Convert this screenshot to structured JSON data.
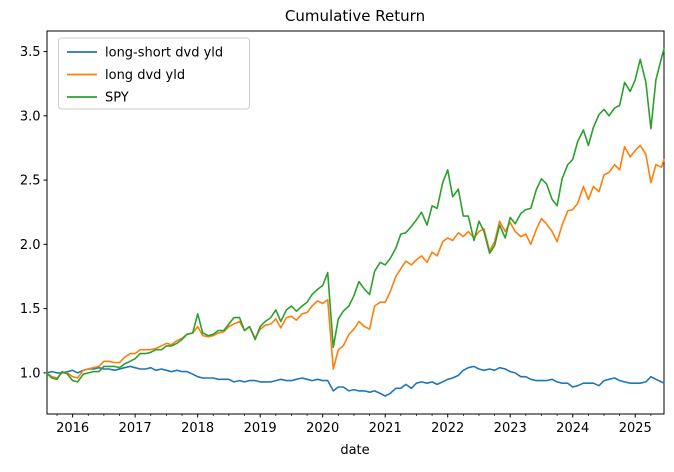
{
  "chart_data": {
    "type": "line",
    "title": "Cumulative Return",
    "xlabel": "date",
    "ylabel": "",
    "xlim": [
      2015.59,
      2025.46
    ],
    "ylim": [
      0.68,
      3.66
    ],
    "xticks": [
      2016,
      2017,
      2018,
      2019,
      2020,
      2021,
      2022,
      2023,
      2024,
      2025
    ],
    "yticks": [
      1.0,
      1.5,
      2.0,
      2.5,
      3.0,
      3.5
    ],
    "grid": false,
    "legend_position": "upper-left",
    "x_units": "decimal-year (monthly samples, Jul 2015 - Jun 2025)",
    "x": [
      2015.58,
      2015.67,
      2015.75,
      2015.83,
      2015.92,
      2016.0,
      2016.08,
      2016.17,
      2016.25,
      2016.33,
      2016.42,
      2016.5,
      2016.58,
      2016.67,
      2016.75,
      2016.83,
      2016.92,
      2017.0,
      2017.08,
      2017.17,
      2017.25,
      2017.33,
      2017.42,
      2017.5,
      2017.58,
      2017.67,
      2017.75,
      2017.83,
      2017.92,
      2018.0,
      2018.08,
      2018.17,
      2018.25,
      2018.33,
      2018.42,
      2018.5,
      2018.58,
      2018.67,
      2018.75,
      2018.83,
      2018.92,
      2019.0,
      2019.08,
      2019.17,
      2019.25,
      2019.33,
      2019.42,
      2019.5,
      2019.58,
      2019.67,
      2019.75,
      2019.83,
      2019.92,
      2020.0,
      2020.08,
      2020.17,
      2020.25,
      2020.33,
      2020.42,
      2020.5,
      2020.58,
      2020.67,
      2020.75,
      2020.83,
      2020.92,
      2021.0,
      2021.08,
      2021.17,
      2021.25,
      2021.33,
      2021.42,
      2021.5,
      2021.58,
      2021.67,
      2021.75,
      2021.83,
      2021.92,
      2022.0,
      2022.08,
      2022.17,
      2022.25,
      2022.33,
      2022.42,
      2022.5,
      2022.58,
      2022.67,
      2022.75,
      2022.83,
      2022.92,
      2023.0,
      2023.08,
      2023.17,
      2023.25,
      2023.33,
      2023.42,
      2023.5,
      2023.58,
      2023.67,
      2023.75,
      2023.83,
      2023.92,
      2024.0,
      2024.08,
      2024.17,
      2024.25,
      2024.33,
      2024.42,
      2024.5,
      2024.58,
      2024.67,
      2024.75,
      2024.83,
      2024.92,
      2025.0,
      2025.08,
      2025.17,
      2025.25,
      2025.33,
      2025.42,
      2025.46
    ],
    "series": [
      {
        "name": "long-short dvd yld",
        "color": "#1f77b4",
        "values": [
          1.0,
          1.01,
          1.0,
          1.0,
          1.01,
          1.02,
          1.0,
          1.02,
          1.03,
          1.03,
          1.04,
          1.03,
          1.03,
          1.02,
          1.03,
          1.04,
          1.05,
          1.04,
          1.03,
          1.03,
          1.04,
          1.02,
          1.03,
          1.02,
          1.01,
          1.02,
          1.01,
          1.01,
          0.99,
          0.97,
          0.96,
          0.96,
          0.96,
          0.95,
          0.95,
          0.95,
          0.93,
          0.94,
          0.93,
          0.94,
          0.94,
          0.93,
          0.93,
          0.93,
          0.94,
          0.95,
          0.94,
          0.94,
          0.95,
          0.96,
          0.95,
          0.94,
          0.95,
          0.94,
          0.94,
          0.86,
          0.89,
          0.89,
          0.86,
          0.87,
          0.86,
          0.86,
          0.85,
          0.86,
          0.84,
          0.82,
          0.84,
          0.88,
          0.88,
          0.91,
          0.88,
          0.92,
          0.93,
          0.92,
          0.93,
          0.91,
          0.93,
          0.95,
          0.96,
          0.98,
          1.02,
          1.04,
          1.05,
          1.03,
          1.02,
          1.03,
          1.02,
          1.04,
          1.03,
          1.01,
          1.0,
          0.97,
          0.97,
          0.95,
          0.94,
          0.94,
          0.94,
          0.95,
          0.93,
          0.92,
          0.92,
          0.89,
          0.9,
          0.92,
          0.92,
          0.92,
          0.9,
          0.94,
          0.95,
          0.96,
          0.94,
          0.93,
          0.92,
          0.92,
          0.92,
          0.93,
          0.97,
          0.95,
          0.93,
          0.92
        ]
      },
      {
        "name": "long dvd yld",
        "color": "#ff7f0e",
        "values": [
          1.0,
          0.97,
          0.96,
          1.0,
          1.0,
          0.97,
          0.96,
          1.02,
          1.03,
          1.04,
          1.05,
          1.09,
          1.09,
          1.08,
          1.08,
          1.12,
          1.15,
          1.15,
          1.18,
          1.18,
          1.18,
          1.19,
          1.21,
          1.23,
          1.22,
          1.25,
          1.27,
          1.3,
          1.31,
          1.36,
          1.29,
          1.28,
          1.29,
          1.31,
          1.32,
          1.36,
          1.38,
          1.4,
          1.33,
          1.36,
          1.27,
          1.34,
          1.37,
          1.38,
          1.42,
          1.35,
          1.43,
          1.44,
          1.41,
          1.46,
          1.47,
          1.52,
          1.56,
          1.54,
          1.57,
          1.03,
          1.18,
          1.21,
          1.3,
          1.34,
          1.4,
          1.36,
          1.34,
          1.52,
          1.55,
          1.55,
          1.63,
          1.75,
          1.81,
          1.87,
          1.84,
          1.88,
          1.91,
          1.86,
          1.94,
          1.91,
          2.02,
          2.05,
          2.03,
          2.09,
          2.06,
          2.1,
          2.05,
          2.1,
          2.12,
          1.95,
          2.02,
          2.18,
          2.1,
          2.17,
          2.1,
          2.06,
          2.08,
          2.0,
          2.12,
          2.2,
          2.16,
          2.1,
          2.02,
          2.15,
          2.26,
          2.27,
          2.32,
          2.45,
          2.35,
          2.45,
          2.41,
          2.54,
          2.56,
          2.62,
          2.58,
          2.76,
          2.68,
          2.73,
          2.77,
          2.7,
          2.48,
          2.62,
          2.6,
          2.66
        ]
      },
      {
        "name": "SPY",
        "color": "#2ca02c",
        "values": [
          1.0,
          0.96,
          0.95,
          1.01,
          0.99,
          0.94,
          0.93,
          0.99,
          1.0,
          1.01,
          1.01,
          1.05,
          1.05,
          1.05,
          1.04,
          1.07,
          1.09,
          1.11,
          1.15,
          1.15,
          1.16,
          1.18,
          1.18,
          1.21,
          1.21,
          1.23,
          1.26,
          1.3,
          1.31,
          1.46,
          1.31,
          1.29,
          1.3,
          1.33,
          1.33,
          1.38,
          1.43,
          1.43,
          1.33,
          1.36,
          1.26,
          1.36,
          1.4,
          1.43,
          1.49,
          1.4,
          1.49,
          1.52,
          1.48,
          1.52,
          1.55,
          1.61,
          1.65,
          1.68,
          1.78,
          1.2,
          1.42,
          1.48,
          1.52,
          1.6,
          1.71,
          1.65,
          1.61,
          1.79,
          1.86,
          1.84,
          1.89,
          1.97,
          2.08,
          2.09,
          2.14,
          2.19,
          2.25,
          2.15,
          2.3,
          2.28,
          2.48,
          2.58,
          2.37,
          2.43,
          2.22,
          2.22,
          2.03,
          2.18,
          2.1,
          1.93,
          1.99,
          2.15,
          2.05,
          2.21,
          2.16,
          2.24,
          2.27,
          2.28,
          2.43,
          2.51,
          2.47,
          2.35,
          2.3,
          2.51,
          2.62,
          2.66,
          2.8,
          2.89,
          2.77,
          2.91,
          3.01,
          3.05,
          3.0,
          3.06,
          3.08,
          3.26,
          3.19,
          3.28,
          3.44,
          3.26,
          2.9,
          3.28,
          3.45,
          3.52
        ]
      }
    ]
  }
}
